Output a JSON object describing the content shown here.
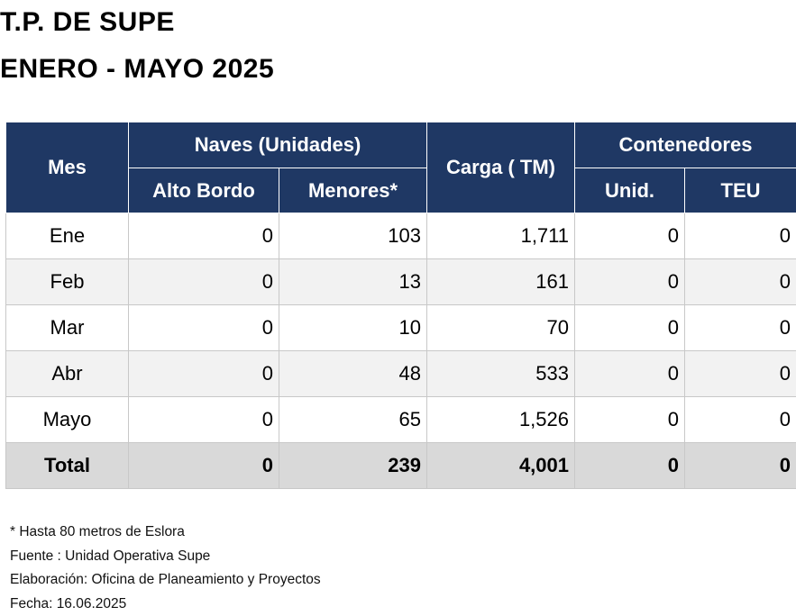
{
  "title": "T.P. DE SUPE",
  "subtitle": "ENERO - MAYO  2025",
  "headers": {
    "mes": "Mes",
    "naves": "Naves (Unidades)",
    "alto_bordo": "Alto Bordo",
    "menores": "Menores*",
    "carga": "Carga ( TM)",
    "contenedores": "Contenedores",
    "unid": "Unid.",
    "teu": "TEU"
  },
  "rows": [
    {
      "mes": "Ene",
      "alto_bordo": "0",
      "menores": "103",
      "carga": "1,711",
      "unid": "0",
      "teu": "0"
    },
    {
      "mes": "Feb",
      "alto_bordo": "0",
      "menores": "13",
      "carga": "161",
      "unid": "0",
      "teu": "0"
    },
    {
      "mes": "Mar",
      "alto_bordo": "0",
      "menores": "10",
      "carga": "70",
      "unid": "0",
      "teu": "0"
    },
    {
      "mes": "Abr",
      "alto_bordo": "0",
      "menores": "48",
      "carga": "533",
      "unid": "0",
      "teu": "0"
    },
    {
      "mes": "Mayo",
      "alto_bordo": "0",
      "menores": "65",
      "carga": "1,526",
      "unid": "0",
      "teu": "0"
    }
  ],
  "total": {
    "mes": "Total",
    "alto_bordo": "0",
    "menores": "239",
    "carga": "4,001",
    "unid": "0",
    "teu": "0"
  },
  "notes": [
    "* Hasta 80 metros de Eslora",
    "Fuente : Unidad Operativa Supe",
    "Elaboración: Oficina de Planeamiento y Proyectos",
    "Fecha: 16.06.2025"
  ],
  "colors": {
    "header_bg": "#1f3864",
    "title_text": "#1f3864",
    "alt_row_bg": "#f2f2f2",
    "total_row_bg": "#d9d9d9"
  }
}
